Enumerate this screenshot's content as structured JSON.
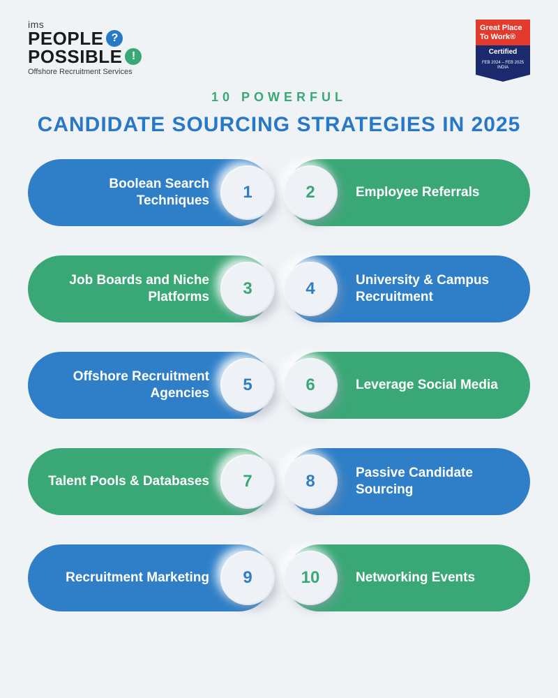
{
  "logo": {
    "ims": "ims",
    "people": "PEOPLE",
    "possible": "POSSIBLE",
    "q": "?",
    "e": "!",
    "tagline": "Offshore Recruitment Services"
  },
  "badge": {
    "top": "Great Place To Work®",
    "mid": "Certified",
    "bot_line1": "FEB 2024 – FEB 2025",
    "bot_line2": "INDIA"
  },
  "subtitle": "10 POWERFUL",
  "title": "CANDIDATE SOURCING STRATEGIES IN 2025",
  "colors": {
    "blue": "#2f7fc8",
    "green": "#3aa876",
    "bg": "#f0f3f6"
  },
  "items": [
    {
      "n": "1",
      "label": "Boolean Search Techniques",
      "pill": "blue",
      "num": "blue",
      "side": "left"
    },
    {
      "n": "2",
      "label": "Employee Referrals",
      "pill": "green",
      "num": "green",
      "side": "right"
    },
    {
      "n": "3",
      "label": "Job Boards and Niche Platforms",
      "pill": "green",
      "num": "green",
      "side": "left"
    },
    {
      "n": "4",
      "label": "University & Campus Recruitment",
      "pill": "blue",
      "num": "blue",
      "side": "right"
    },
    {
      "n": "5",
      "label": "Offshore Recruitment Agencies",
      "pill": "blue",
      "num": "blue",
      "side": "left"
    },
    {
      "n": "6",
      "label": "Leverage Social Media",
      "pill": "green",
      "num": "green",
      "side": "right"
    },
    {
      "n": "7",
      "label": "Talent Pools & Databases",
      "pill": "green",
      "num": "green",
      "side": "left"
    },
    {
      "n": "8",
      "label": "Passive Candidate Sourcing",
      "pill": "blue",
      "num": "blue",
      "side": "right"
    },
    {
      "n": "9",
      "label": "Recruitment Marketing",
      "pill": "blue",
      "num": "blue",
      "side": "left"
    },
    {
      "n": "10",
      "label": "Networking Events",
      "pill": "green",
      "num": "green",
      "side": "right"
    }
  ]
}
